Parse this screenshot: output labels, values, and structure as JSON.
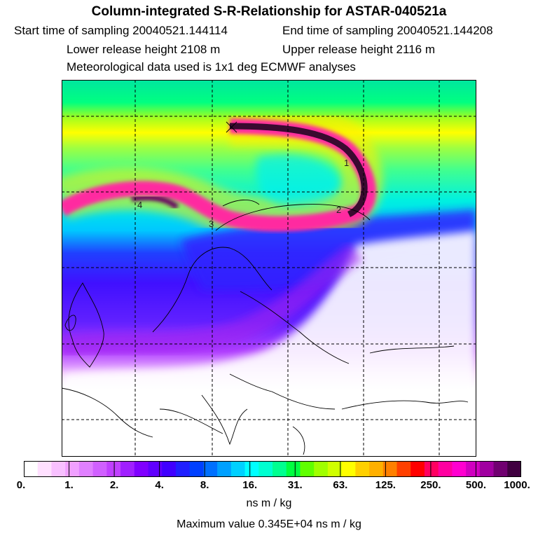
{
  "header": {
    "title": "Column-integrated S-R-Relationship for ASTAR-040521a",
    "start_label": "Start time of sampling 20040521.144114",
    "end_label": "End time of sampling 20040521.144208",
    "lower_label": "Lower release height 2108 m",
    "upper_label": "Upper release height 2116 m",
    "met_label": "Meteorological data used is 1x1 deg ECMWF analyses"
  },
  "map": {
    "plume_labels": [
      "1",
      "2",
      "3",
      "4"
    ],
    "colors": {
      "polar_green": "#00e676",
      "yellow": "#ffee00",
      "cyan": "#00f0f0",
      "magenta": "#ff2aa0",
      "dark_purple": "#3a0a30",
      "blue": "#3030ff",
      "violet": "#a020f0",
      "pale": "#f4c8ff"
    }
  },
  "colorbar": {
    "ticks": [
      "0.",
      "1.",
      "2.",
      "4.",
      "8.",
      "16.",
      "31.",
      "63.",
      "125.",
      "250.",
      "500.",
      "1000."
    ],
    "colors": [
      "#ffffff",
      "#ffe0ff",
      "#f8c0ff",
      "#f0a0ff",
      "#e080ff",
      "#d060ff",
      "#c040ff",
      "#a020ff",
      "#8000ff",
      "#6000ff",
      "#4000ff",
      "#2020ff",
      "#0040ff",
      "#0070ff",
      "#00a0ff",
      "#00d0ff",
      "#00ffff",
      "#00ffd0",
      "#00ff90",
      "#00ff40",
      "#60ff00",
      "#a0ff00",
      "#d0ff00",
      "#ffff00",
      "#ffd000",
      "#ffb000",
      "#ff8000",
      "#ff4000",
      "#ff0000",
      "#ff0060",
      "#ff00a0",
      "#ff00d0",
      "#d000c0",
      "#a000a0",
      "#700070",
      "#400040"
    ]
  },
  "units": "ns m / kg",
  "max_value": "Maximum value  0.345E+04 ns m / kg"
}
